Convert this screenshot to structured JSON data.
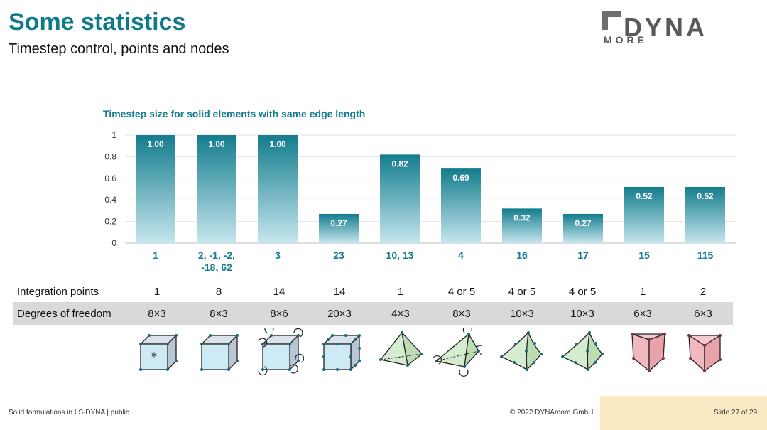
{
  "header": {
    "title": "Some statistics",
    "subtitle": "Timestep control, points and nodes",
    "logo_word": "DYNA",
    "logo_sub": "MORE"
  },
  "chart_data": {
    "type": "bar",
    "title": "Timestep size for solid elements with same edge length",
    "categories": [
      "1",
      "2, -1, -2, -18, 62",
      "3",
      "23",
      "10, 13",
      "4",
      "16",
      "17",
      "15",
      "115"
    ],
    "category_lines": [
      [
        "1"
      ],
      [
        "2, -1, -2,",
        "-18, 62"
      ],
      [
        "3"
      ],
      [
        "23"
      ],
      [
        "10, 13"
      ],
      [
        "4"
      ],
      [
        "16"
      ],
      [
        "17"
      ],
      [
        "15"
      ],
      [
        "115"
      ]
    ],
    "values": [
      1.0,
      1.0,
      1.0,
      0.27,
      0.82,
      0.69,
      0.32,
      0.27,
      0.52,
      0.52
    ],
    "value_labels": [
      "1.00",
      "1.00",
      "1.00",
      "0.27",
      "0.82",
      "0.69",
      "0.32",
      "0.27",
      "0.52",
      "0.52"
    ],
    "ylim": [
      0,
      1
    ],
    "yticks": [
      "0",
      "0.2",
      "0.4",
      "0.6",
      "0.8",
      "1"
    ],
    "ytick_values": [
      0,
      0.2,
      0.4,
      0.6,
      0.8,
      1
    ],
    "grid": true,
    "bar_color_top": "#137c8d",
    "bar_color_bottom": "#c6e6ee",
    "label_color": "#137c8d"
  },
  "table": {
    "integration_label": "Integration points",
    "integration_points": [
      "1",
      "8",
      "14",
      "14",
      "1",
      "4 or 5",
      "4 or 5",
      "4 or 5",
      "1",
      "2"
    ],
    "dof_label": "Degrees of freedom",
    "degrees_of_freedom": [
      "8×3",
      "8×3",
      "8×6",
      "20×3",
      "4×3",
      "8×3",
      "10×3",
      "10×3",
      "6×3",
      "6×3"
    ]
  },
  "element_icons": [
    "hexa-1pt-icon",
    "hexa-8pt-icon",
    "hexa-rotational-icon",
    "hexa-20node-icon",
    "tetra-1pt-icon",
    "tetra-rotational-icon",
    "tetra-10node-icon",
    "tetra-10node-composite-icon",
    "penta-1pt-icon",
    "penta-2pt-icon"
  ],
  "footer": {
    "left": "Solid formulations in LS-DYNA | public",
    "middle": "© 2022 DYNAmore GmbH",
    "right": "Slide 27 of 29"
  }
}
